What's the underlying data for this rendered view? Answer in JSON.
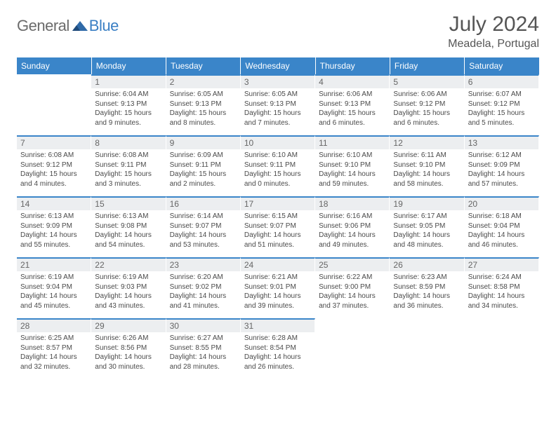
{
  "logo": {
    "part1": "General",
    "part2": "Blue"
  },
  "title": "July 2024",
  "location": "Meadela, Portugal",
  "colors": {
    "header_bg": "#3a85c9",
    "row_sep": "#3a85c9",
    "daynum_bg": "#eceef0"
  },
  "week_header": [
    "Sunday",
    "Monday",
    "Tuesday",
    "Wednesday",
    "Thursday",
    "Friday",
    "Saturday"
  ],
  "weeks": [
    [
      {
        "n": "",
        "l1": "",
        "l2": "",
        "l3": "",
        "l4": "",
        "empty": true
      },
      {
        "n": "1",
        "l1": "Sunrise: 6:04 AM",
        "l2": "Sunset: 9:13 PM",
        "l3": "Daylight: 15 hours",
        "l4": "and 9 minutes."
      },
      {
        "n": "2",
        "l1": "Sunrise: 6:05 AM",
        "l2": "Sunset: 9:13 PM",
        "l3": "Daylight: 15 hours",
        "l4": "and 8 minutes."
      },
      {
        "n": "3",
        "l1": "Sunrise: 6:05 AM",
        "l2": "Sunset: 9:13 PM",
        "l3": "Daylight: 15 hours",
        "l4": "and 7 minutes."
      },
      {
        "n": "4",
        "l1": "Sunrise: 6:06 AM",
        "l2": "Sunset: 9:13 PM",
        "l3": "Daylight: 15 hours",
        "l4": "and 6 minutes."
      },
      {
        "n": "5",
        "l1": "Sunrise: 6:06 AM",
        "l2": "Sunset: 9:12 PM",
        "l3": "Daylight: 15 hours",
        "l4": "and 6 minutes."
      },
      {
        "n": "6",
        "l1": "Sunrise: 6:07 AM",
        "l2": "Sunset: 9:12 PM",
        "l3": "Daylight: 15 hours",
        "l4": "and 5 minutes."
      }
    ],
    [
      {
        "n": "7",
        "l1": "Sunrise: 6:08 AM",
        "l2": "Sunset: 9:12 PM",
        "l3": "Daylight: 15 hours",
        "l4": "and 4 minutes."
      },
      {
        "n": "8",
        "l1": "Sunrise: 6:08 AM",
        "l2": "Sunset: 9:11 PM",
        "l3": "Daylight: 15 hours",
        "l4": "and 3 minutes."
      },
      {
        "n": "9",
        "l1": "Sunrise: 6:09 AM",
        "l2": "Sunset: 9:11 PM",
        "l3": "Daylight: 15 hours",
        "l4": "and 2 minutes."
      },
      {
        "n": "10",
        "l1": "Sunrise: 6:10 AM",
        "l2": "Sunset: 9:11 PM",
        "l3": "Daylight: 15 hours",
        "l4": "and 0 minutes."
      },
      {
        "n": "11",
        "l1": "Sunrise: 6:10 AM",
        "l2": "Sunset: 9:10 PM",
        "l3": "Daylight: 14 hours",
        "l4": "and 59 minutes."
      },
      {
        "n": "12",
        "l1": "Sunrise: 6:11 AM",
        "l2": "Sunset: 9:10 PM",
        "l3": "Daylight: 14 hours",
        "l4": "and 58 minutes."
      },
      {
        "n": "13",
        "l1": "Sunrise: 6:12 AM",
        "l2": "Sunset: 9:09 PM",
        "l3": "Daylight: 14 hours",
        "l4": "and 57 minutes."
      }
    ],
    [
      {
        "n": "14",
        "l1": "Sunrise: 6:13 AM",
        "l2": "Sunset: 9:09 PM",
        "l3": "Daylight: 14 hours",
        "l4": "and 55 minutes."
      },
      {
        "n": "15",
        "l1": "Sunrise: 6:13 AM",
        "l2": "Sunset: 9:08 PM",
        "l3": "Daylight: 14 hours",
        "l4": "and 54 minutes."
      },
      {
        "n": "16",
        "l1": "Sunrise: 6:14 AM",
        "l2": "Sunset: 9:07 PM",
        "l3": "Daylight: 14 hours",
        "l4": "and 53 minutes."
      },
      {
        "n": "17",
        "l1": "Sunrise: 6:15 AM",
        "l2": "Sunset: 9:07 PM",
        "l3": "Daylight: 14 hours",
        "l4": "and 51 minutes."
      },
      {
        "n": "18",
        "l1": "Sunrise: 6:16 AM",
        "l2": "Sunset: 9:06 PM",
        "l3": "Daylight: 14 hours",
        "l4": "and 49 minutes."
      },
      {
        "n": "19",
        "l1": "Sunrise: 6:17 AM",
        "l2": "Sunset: 9:05 PM",
        "l3": "Daylight: 14 hours",
        "l4": "and 48 minutes."
      },
      {
        "n": "20",
        "l1": "Sunrise: 6:18 AM",
        "l2": "Sunset: 9:04 PM",
        "l3": "Daylight: 14 hours",
        "l4": "and 46 minutes."
      }
    ],
    [
      {
        "n": "21",
        "l1": "Sunrise: 6:19 AM",
        "l2": "Sunset: 9:04 PM",
        "l3": "Daylight: 14 hours",
        "l4": "and 45 minutes."
      },
      {
        "n": "22",
        "l1": "Sunrise: 6:19 AM",
        "l2": "Sunset: 9:03 PM",
        "l3": "Daylight: 14 hours",
        "l4": "and 43 minutes."
      },
      {
        "n": "23",
        "l1": "Sunrise: 6:20 AM",
        "l2": "Sunset: 9:02 PM",
        "l3": "Daylight: 14 hours",
        "l4": "and 41 minutes."
      },
      {
        "n": "24",
        "l1": "Sunrise: 6:21 AM",
        "l2": "Sunset: 9:01 PM",
        "l3": "Daylight: 14 hours",
        "l4": "and 39 minutes."
      },
      {
        "n": "25",
        "l1": "Sunrise: 6:22 AM",
        "l2": "Sunset: 9:00 PM",
        "l3": "Daylight: 14 hours",
        "l4": "and 37 minutes."
      },
      {
        "n": "26",
        "l1": "Sunrise: 6:23 AM",
        "l2": "Sunset: 8:59 PM",
        "l3": "Daylight: 14 hours",
        "l4": "and 36 minutes."
      },
      {
        "n": "27",
        "l1": "Sunrise: 6:24 AM",
        "l2": "Sunset: 8:58 PM",
        "l3": "Daylight: 14 hours",
        "l4": "and 34 minutes."
      }
    ],
    [
      {
        "n": "28",
        "l1": "Sunrise: 6:25 AM",
        "l2": "Sunset: 8:57 PM",
        "l3": "Daylight: 14 hours",
        "l4": "and 32 minutes."
      },
      {
        "n": "29",
        "l1": "Sunrise: 6:26 AM",
        "l2": "Sunset: 8:56 PM",
        "l3": "Daylight: 14 hours",
        "l4": "and 30 minutes."
      },
      {
        "n": "30",
        "l1": "Sunrise: 6:27 AM",
        "l2": "Sunset: 8:55 PM",
        "l3": "Daylight: 14 hours",
        "l4": "and 28 minutes."
      },
      {
        "n": "31",
        "l1": "Sunrise: 6:28 AM",
        "l2": "Sunset: 8:54 PM",
        "l3": "Daylight: 14 hours",
        "l4": "and 26 minutes."
      },
      {
        "n": "",
        "l1": "",
        "l2": "",
        "l3": "",
        "l4": "",
        "empty": true
      },
      {
        "n": "",
        "l1": "",
        "l2": "",
        "l3": "",
        "l4": "",
        "empty": true
      },
      {
        "n": "",
        "l1": "",
        "l2": "",
        "l3": "",
        "l4": "",
        "empty": true
      }
    ]
  ]
}
